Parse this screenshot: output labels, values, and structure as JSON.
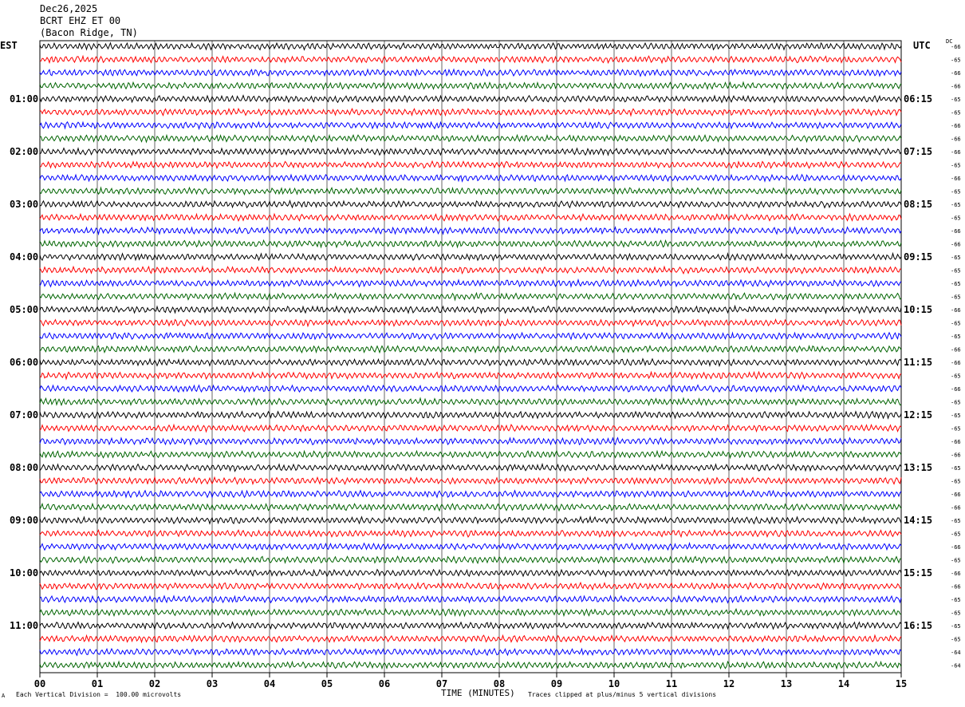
{
  "header": {
    "date": "Dec26,2025",
    "station": "BCRT EHZ ET 00",
    "location": "(Bacon Ridge, TN)"
  },
  "left_label": "EST",
  "right_label": "UTC",
  "dc_label": "DC",
  "footer": {
    "scale_note": "Each Vertical Division =  100.00 microvolts",
    "xlabel": "TIME (MINUTES)",
    "clip_note": "Traces clipped at plus/minus 5 vertical divisions",
    "corner_mark": "A"
  },
  "colors": {
    "trace_cycle": [
      "#000000",
      "#ff0000",
      "#0000ff",
      "#006400"
    ],
    "grid": "#000000",
    "background": "#ffffff"
  },
  "chart_data": {
    "type": "line",
    "subtype": "helicorder",
    "x_ticks": [
      "00",
      "01",
      "02",
      "03",
      "04",
      "05",
      "06",
      "07",
      "08",
      "09",
      "10",
      "11",
      "12",
      "13",
      "14",
      "15"
    ],
    "xlim": [
      0,
      15
    ],
    "rows_per_hour": 4,
    "row_count": 48,
    "left_hour_labels": [
      "01:00",
      "02:00",
      "03:00",
      "04:00",
      "05:00",
      "06:00",
      "07:00",
      "08:00",
      "09:00",
      "10:00",
      "11:00"
    ],
    "right_hour_labels": [
      "06:15",
      "07:15",
      "08:15",
      "09:15",
      "10:15",
      "11:15",
      "12:15",
      "13:15",
      "14:15",
      "15:15",
      "16:15"
    ],
    "dc_offsets": [
      "-66",
      "-65",
      "-66",
      "-66",
      "-65",
      "-65",
      "-66",
      "-66",
      "-66",
      "-65",
      "-66",
      "-65",
      "-65",
      "-65",
      "-66",
      "-66",
      "-65",
      "-65",
      "-65",
      "-65",
      "-66",
      "-65",
      "-65",
      "-66",
      "-66",
      "-65",
      "-66",
      "-65",
      "-65",
      "-65",
      "-66",
      "-66",
      "-65",
      "-65",
      "-66",
      "-66",
      "-65",
      "-65",
      "-66",
      "-65",
      "-66",
      "-66",
      "-65",
      "-65",
      "-65",
      "-65",
      "-64",
      "-64"
    ]
  }
}
